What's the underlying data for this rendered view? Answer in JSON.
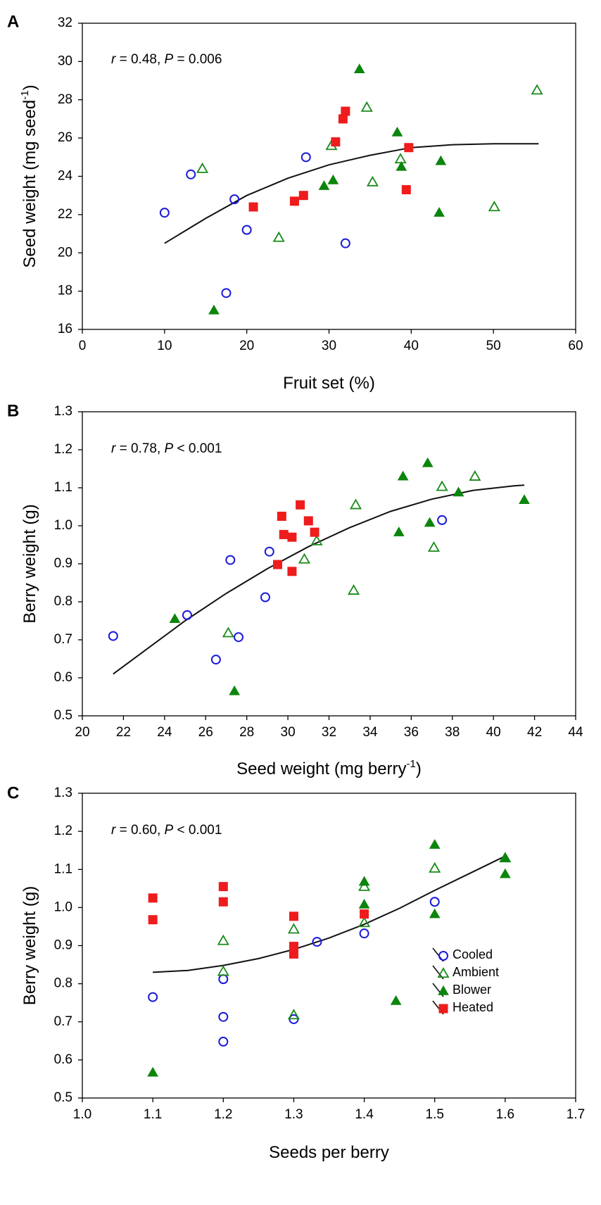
{
  "chart_data": [
    {
      "panel_label": "A",
      "type": "scatter",
      "xlabel": "Fruit set (%)",
      "ylabel": "Seed weight (mg seed",
      "ylabel_sup": "-1",
      "ylabel_end": ")",
      "xlim": [
        0,
        60
      ],
      "ylim": [
        16,
        32
      ],
      "xticks": [
        0,
        10,
        20,
        30,
        40,
        50,
        60
      ],
      "yticks": [
        16,
        18,
        20,
        22,
        24,
        26,
        28,
        30,
        32
      ],
      "xtick_labels": [
        "0",
        "10",
        "20",
        "30",
        "40",
        "50",
        "60"
      ],
      "ytick_labels": [
        "16",
        "18",
        "20",
        "22",
        "24",
        "26",
        "28",
        "30",
        "32"
      ],
      "annotation": {
        "r_label": "r",
        "r_value": " = 0.48, ",
        "p_label": "P",
        "p_value": " = 0.006"
      },
      "series": [
        {
          "name": "Cooled",
          "points": [
            [
              10,
              22.1
            ],
            [
              13.2,
              24.1
            ],
            [
              17.5,
              17.9
            ],
            [
              18.5,
              22.8
            ],
            [
              20,
              21.2
            ],
            [
              27.2,
              25
            ],
            [
              32,
              20.5
            ]
          ]
        },
        {
          "name": "Ambient",
          "points": [
            [
              14.6,
              24.4
            ],
            [
              23.9,
              20.8
            ],
            [
              30.3,
              25.6
            ],
            [
              34.6,
              27.6
            ],
            [
              35.3,
              23.7
            ],
            [
              38.7,
              24.9
            ],
            [
              50.1,
              22.4
            ],
            [
              55.3,
              28.5
            ]
          ]
        },
        {
          "name": "Blower",
          "points": [
            [
              16,
              17
            ],
            [
              29.4,
              23.5
            ],
            [
              30.5,
              23.8
            ],
            [
              33.7,
              29.6
            ],
            [
              38.3,
              26.3
            ],
            [
              38.8,
              24.5
            ],
            [
              43.4,
              22.1
            ],
            [
              43.6,
              24.8
            ]
          ]
        },
        {
          "name": "Heated",
          "points": [
            [
              20.8,
              22.4
            ],
            [
              25.8,
              22.7
            ],
            [
              26.9,
              23
            ],
            [
              30.8,
              25.8
            ],
            [
              31.7,
              27
            ],
            [
              32,
              27.4
            ],
            [
              39.4,
              23.3
            ],
            [
              39.7,
              25.5
            ]
          ]
        }
      ],
      "fit_curve": [
        [
          10,
          20.5
        ],
        [
          15,
          21.8
        ],
        [
          20,
          23
        ],
        [
          25,
          23.9
        ],
        [
          30,
          24.6
        ],
        [
          35,
          25.1
        ],
        [
          40,
          25.5
        ],
        [
          45,
          25.65
        ],
        [
          50,
          25.7
        ],
        [
          55.5,
          25.7
        ]
      ]
    },
    {
      "panel_label": "B",
      "type": "scatter",
      "xlabel": "Seed weight (mg berry",
      "xlabel_sup": "-1",
      "xlabel_end": ")",
      "ylabel": "Berry weight (g)",
      "xlim": [
        20,
        44
      ],
      "ylim": [
        0.5,
        1.3
      ],
      "xticks": [
        20,
        22,
        24,
        26,
        28,
        30,
        32,
        34,
        36,
        38,
        40,
        42,
        44
      ],
      "yticks": [
        0.5,
        0.6,
        0.7,
        0.8,
        0.9,
        1.0,
        1.1,
        1.2,
        1.3
      ],
      "xtick_labels": [
        "20",
        "22",
        "24",
        "26",
        "28",
        "30",
        "32",
        "34",
        "36",
        "38",
        "40",
        "42",
        "44"
      ],
      "ytick_labels": [
        "0.5",
        "0.6",
        "0.7",
        "0.8",
        "0.9",
        "1.0",
        "1.1",
        "1.2",
        "1.3"
      ],
      "annotation": {
        "r_label": "r",
        "r_value": " = 0.78, ",
        "p_label": "P",
        "p_value": " < 0.001"
      },
      "series": [
        {
          "name": "Cooled",
          "points": [
            [
              21.5,
              0.71
            ],
            [
              25.1,
              0.765
            ],
            [
              26.5,
              0.648
            ],
            [
              27.2,
              0.91
            ],
            [
              27.6,
              0.707
            ],
            [
              28.9,
              0.812
            ],
            [
              29.1,
              0.932
            ],
            [
              37.5,
              1.015
            ]
          ]
        },
        {
          "name": "Ambient",
          "points": [
            [
              27.1,
              0.718
            ],
            [
              30.8,
              0.912
            ],
            [
              31.4,
              0.96
            ],
            [
              33.2,
              0.83
            ],
            [
              33.3,
              1.055
            ],
            [
              37.1,
              0.943
            ],
            [
              37.5,
              1.103
            ],
            [
              39.1,
              1.13
            ]
          ]
        },
        {
          "name": "Blower",
          "points": [
            [
              24.5,
              0.755
            ],
            [
              27.4,
              0.565
            ],
            [
              35.4,
              0.983
            ],
            [
              35.6,
              1.13
            ],
            [
              36.8,
              1.165
            ],
            [
              36.9,
              1.008
            ],
            [
              38.3,
              1.088
            ],
            [
              41.5,
              1.068
            ]
          ]
        },
        {
          "name": "Heated",
          "points": [
            [
              29.5,
              0.898
            ],
            [
              29.7,
              1.025
            ],
            [
              29.8,
              0.977
            ],
            [
              30.2,
              0.97
            ],
            [
              30.2,
              0.88
            ],
            [
              30.6,
              1.055
            ],
            [
              31,
              1.013
            ],
            [
              31.3,
              0.983
            ]
          ]
        }
      ],
      "fit_curve": [
        [
          21.5,
          0.61
        ],
        [
          23,
          0.67
        ],
        [
          25,
          0.75
        ],
        [
          27,
          0.822
        ],
        [
          29,
          0.887
        ],
        [
          31,
          0.945
        ],
        [
          33,
          0.995
        ],
        [
          35,
          1.038
        ],
        [
          37,
          1.07
        ],
        [
          39,
          1.093
        ],
        [
          41,
          1.105
        ],
        [
          41.5,
          1.107
        ]
      ]
    },
    {
      "panel_label": "C",
      "type": "scatter",
      "xlabel": "Seeds per berry",
      "ylabel": "Berry weight (g)",
      "xlim": [
        1.0,
        1.7
      ],
      "ylim": [
        0.5,
        1.3
      ],
      "xticks": [
        1.0,
        1.1,
        1.2,
        1.3,
        1.4,
        1.5,
        1.6,
        1.7
      ],
      "yticks": [
        0.5,
        0.6,
        0.7,
        0.8,
        0.9,
        1.0,
        1.1,
        1.2,
        1.3
      ],
      "xtick_labels": [
        "1.0",
        "1.1",
        "1.2",
        "1.3",
        "1.4",
        "1.5",
        "1.6",
        "1.7"
      ],
      "ytick_labels": [
        "0.5",
        "0.6",
        "0.7",
        "0.8",
        "0.9",
        "1.0",
        "1.1",
        "1.2",
        "1.3"
      ],
      "annotation": {
        "r_label": "r",
        "r_value": " = 0.60, ",
        "p_label": "P",
        "p_value": " < 0.001"
      },
      "series": [
        {
          "name": "Cooled",
          "points": [
            [
              1.1,
              0.765
            ],
            [
              1.2,
              0.812
            ],
            [
              1.2,
              0.713
            ],
            [
              1.2,
              0.648
            ],
            [
              1.3,
              0.707
            ],
            [
              1.333,
              0.91
            ],
            [
              1.4,
              0.932
            ],
            [
              1.5,
              1.015
            ]
          ]
        },
        {
          "name": "Ambient",
          "points": [
            [
              1.2,
              0.913
            ],
            [
              1.2,
              0.832
            ],
            [
              1.3,
              0.943
            ],
            [
              1.3,
              0.718
            ],
            [
              1.4,
              1.055
            ],
            [
              1.4,
              0.96
            ],
            [
              1.5,
              1.103
            ],
            [
              1.6,
              1.13
            ]
          ]
        },
        {
          "name": "Blower",
          "points": [
            [
              1.1,
              0.567
            ],
            [
              1.4,
              1.068
            ],
            [
              1.4,
              1.008
            ],
            [
              1.445,
              0.755
            ],
            [
              1.5,
              1.165
            ],
            [
              1.5,
              0.983
            ],
            [
              1.6,
              1.13
            ],
            [
              1.6,
              1.088
            ]
          ]
        },
        {
          "name": "Heated",
          "points": [
            [
              1.1,
              1.025
            ],
            [
              1.1,
              0.968
            ],
            [
              1.2,
              1.055
            ],
            [
              1.2,
              1.015
            ],
            [
              1.3,
              0.977
            ],
            [
              1.3,
              0.898
            ],
            [
              1.3,
              0.878
            ],
            [
              1.4,
              0.983
            ]
          ]
        }
      ],
      "fit_curve": [
        [
          1.1,
          0.83
        ],
        [
          1.15,
          0.835
        ],
        [
          1.2,
          0.848
        ],
        [
          1.25,
          0.866
        ],
        [
          1.3,
          0.89
        ],
        [
          1.35,
          0.92
        ],
        [
          1.4,
          0.956
        ],
        [
          1.45,
          0.998
        ],
        [
          1.5,
          1.045
        ],
        [
          1.55,
          1.09
        ],
        [
          1.6,
          1.135
        ]
      ]
    }
  ],
  "legend": {
    "location": "bottom-right of panel C",
    "items": [
      {
        "name": "Cooled",
        "symbol": "open-circle",
        "color": "#1a1adb"
      },
      {
        "name": "Ambient",
        "symbol": "open-triangle",
        "color": "#1a8a1a"
      },
      {
        "name": "Blower",
        "symbol": "filled-triangle",
        "color": "#0c850c"
      },
      {
        "name": "Heated",
        "symbol": "filled-square",
        "color": "#ee1c1c"
      }
    ]
  },
  "colors": {
    "cooled": "#1a1adb",
    "ambient": "#1a8a1a",
    "blower": "#0c850c",
    "heated": "#ee1c1c",
    "axis": "#000000"
  }
}
